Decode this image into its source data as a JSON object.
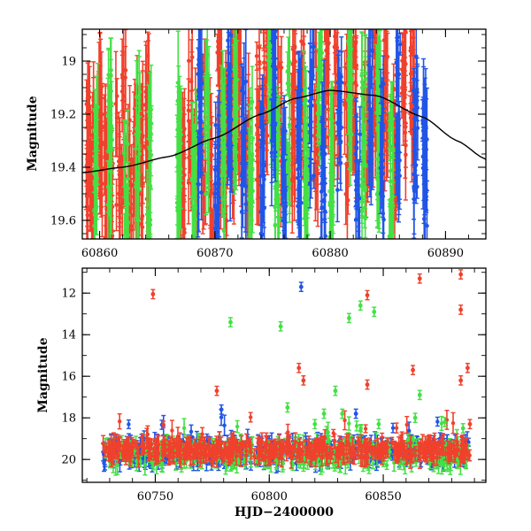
{
  "chart_data": [
    {
      "type": "scatter",
      "title": "",
      "xlabel": "",
      "ylabel": "Magnitude",
      "xlim": [
        60858.5,
        60893.5
      ],
      "ylim": [
        19.67,
        18.88
      ],
      "y_inverted": true,
      "xticks": [
        60860,
        60870,
        60880,
        60890
      ],
      "yticks": [
        19,
        19.2,
        19.4,
        19.6
      ],
      "colors": {
        "red": "#f0412d",
        "green": "#44e045",
        "blue": "#2155e6",
        "curve": "#000000"
      },
      "model_curve": {
        "x": [
          60858.5,
          60862,
          60866,
          60870,
          60874,
          60877,
          60880,
          60884,
          60888,
          60891,
          60893.5
        ],
        "y": [
          19.42,
          19.4,
          19.36,
          19.29,
          19.2,
          19.14,
          19.11,
          19.13,
          19.21,
          19.3,
          19.37
        ]
      },
      "series": [
        {
          "color": "red",
          "x": [
            60859.0,
            60859.4,
            60860.1,
            60860.6,
            60861.0,
            60861.6,
            60862.1,
            60862.6,
            60863.1,
            60863.6,
            60864.1,
            60867.2,
            60867.9,
            60868.4,
            60869.1,
            60869.7,
            60870.4,
            60870.9,
            60871.6,
            60872.1,
            60872.9,
            60873.8,
            60874.4,
            60875.6,
            60876.8,
            60877.6,
            60878.8,
            60879.7,
            60880.5,
            60881.4,
            60882.1,
            60883.1,
            60883.9,
            60884.8,
            60885.6,
            60886.4,
            60887.1
          ],
          "y": [
            19.35,
            19.42,
            19.3,
            19.45,
            19.55,
            19.38,
            19.28,
            19.48,
            19.33,
            19.4,
            19.25,
            19.5,
            19.2,
            19.45,
            19.3,
            19.42,
            19.18,
            19.36,
            19.25,
            19.12,
            19.3,
            19.22,
            19.05,
            19.28,
            19.18,
            19.08,
            19.2,
            19.02,
            19.15,
            19.28,
            19.1,
            19.22,
            19.05,
            19.15,
            19.3,
            19.12,
            19.0
          ]
        },
        {
          "color": "green",
          "x": [
            60859.7,
            60860.9,
            60862.3,
            60863.3,
            60864.3,
            60866.9,
            60868.2,
            60869.3,
            60870.7,
            60871.8,
            60873.1,
            60874.8,
            60875.4,
            60876.3,
            60877.9,
            60879.1,
            60880.1,
            60881.7,
            60882.9,
            60884.2,
            60885.3
          ],
          "y": [
            19.4,
            19.28,
            19.5,
            19.35,
            19.45,
            19.3,
            19.55,
            19.25,
            19.4,
            19.1,
            19.35,
            19.0,
            19.48,
            19.22,
            19.38,
            19.15,
            19.45,
            19.05,
            19.32,
            19.25,
            19.42
          ]
        },
        {
          "color": "blue",
          "x": [
            60868.7,
            60870.2,
            60871.3,
            60872.5,
            60874.1,
            60875.1,
            60876.0,
            60877.3,
            60878.4,
            60879.4,
            60880.8,
            60882.4,
            60883.5,
            60884.5,
            60885.9,
            60887.4,
            60888.2
          ],
          "y": [
            19.25,
            19.45,
            19.15,
            19.3,
            19.38,
            19.12,
            19.5,
            19.35,
            19.2,
            19.42,
            19.28,
            19.48,
            19.12,
            19.35,
            19.18,
            19.25,
            19.38
          ]
        }
      ]
    },
    {
      "type": "scatter",
      "title": "",
      "xlabel": "HJD−2400000",
      "ylabel": "Magnitude",
      "xlim": [
        60718,
        60895
      ],
      "ylim": [
        21.1,
        10.8
      ],
      "y_inverted": true,
      "xticks": [
        60750,
        60800,
        60850
      ],
      "yticks": [
        12,
        14,
        16,
        18,
        20
      ],
      "outliers": [
        {
          "color": "red",
          "x": 60749,
          "y": 12.05
        },
        {
          "color": "green",
          "x": 60783,
          "y": 13.4
        },
        {
          "color": "red",
          "x": 60777,
          "y": 16.7
        },
        {
          "color": "blue",
          "x": 60779,
          "y": 17.6
        },
        {
          "color": "green",
          "x": 60805,
          "y": 13.6
        },
        {
          "color": "blue",
          "x": 60814,
          "y": 11.7
        },
        {
          "color": "red",
          "x": 60813,
          "y": 15.6
        },
        {
          "color": "red",
          "x": 60815,
          "y": 16.2
        },
        {
          "color": "green",
          "x": 60808,
          "y": 17.5
        },
        {
          "color": "green",
          "x": 60820,
          "y": 18.3
        },
        {
          "color": "green",
          "x": 60824,
          "y": 17.8
        },
        {
          "color": "green",
          "x": 60829,
          "y": 16.7
        },
        {
          "color": "green",
          "x": 60832,
          "y": 17.8
        },
        {
          "color": "green",
          "x": 60835,
          "y": 13.2
        },
        {
          "color": "blue",
          "x": 60838,
          "y": 17.8
        },
        {
          "color": "green",
          "x": 60840,
          "y": 12.6
        },
        {
          "color": "red",
          "x": 60843,
          "y": 12.1
        },
        {
          "color": "red",
          "x": 60843,
          "y": 16.4
        },
        {
          "color": "green",
          "x": 60846,
          "y": 12.9
        },
        {
          "color": "green",
          "x": 60848,
          "y": 18.3
        },
        {
          "color": "red",
          "x": 60863,
          "y": 15.7
        },
        {
          "color": "green",
          "x": 60864,
          "y": 18.0
        },
        {
          "color": "red",
          "x": 60866,
          "y": 11.3
        },
        {
          "color": "green",
          "x": 60866,
          "y": 16.9
        },
        {
          "color": "green",
          "x": 60877,
          "y": 18.2
        },
        {
          "color": "red",
          "x": 60884,
          "y": 11.1
        },
        {
          "color": "red",
          "x": 60884,
          "y": 12.8
        },
        {
          "color": "red",
          "x": 60884,
          "y": 16.2
        },
        {
          "color": "red",
          "x": 60887,
          "y": 15.6
        },
        {
          "color": "green",
          "x": 60885,
          "y": 18.5
        },
        {
          "color": "red",
          "x": 60888,
          "y": 18.3
        }
      ]
    }
  ]
}
